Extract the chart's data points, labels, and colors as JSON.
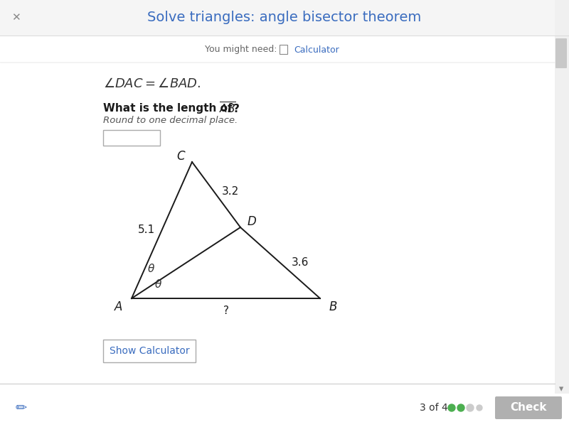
{
  "bg_color": "#ffffff",
  "header_bg": "#f5f5f5",
  "bottom_bg": "#e8e8e8",
  "title": "Solve triangles: angle bisector theorem",
  "title_color": "#3a6cbf",
  "line_color": "#1a1a1a",
  "label_color": "#1a1a1a",
  "check_btn_color": "#b0b0b0",
  "dot_colors": [
    "#4caf50",
    "#4caf50",
    "#cccccc",
    "#cccccc"
  ],
  "progress_text": "3 of 4",
  "A": [
    0.245,
    0.295
  ],
  "C": [
    0.34,
    0.7
  ],
  "B": [
    0.59,
    0.295
  ],
  "D": [
    0.46,
    0.51
  ]
}
